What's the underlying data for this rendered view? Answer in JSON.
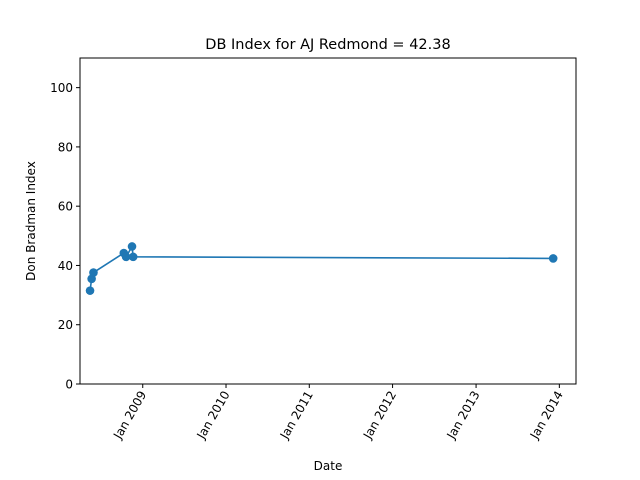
{
  "chart_data": {
    "type": "line",
    "title": "DB Index for AJ Redmond = 42.38",
    "xlabel": "Date",
    "ylabel": "Don Bradman Index",
    "xlim": [
      "2008-04-01",
      "2014-03-15"
    ],
    "ylim": [
      0,
      110
    ],
    "grid": false,
    "x_ticks": [
      {
        "date": "2009-01-01",
        "label": "Jan 2009"
      },
      {
        "date": "2010-01-01",
        "label": "Jan 2010"
      },
      {
        "date": "2011-01-01",
        "label": "Jan 2011"
      },
      {
        "date": "2012-01-01",
        "label": "Jan 2012"
      },
      {
        "date": "2013-01-01",
        "label": "Jan 2013"
      },
      {
        "date": "2014-01-01",
        "label": "Jan 2014"
      }
    ],
    "y_ticks": [
      0,
      20,
      40,
      60,
      80,
      100
    ],
    "series": [
      {
        "color": "#1f77b4",
        "points": [
          {
            "x": "2008-05-15",
            "y": 31.5
          },
          {
            "x": "2008-05-22",
            "y": 35.5
          },
          {
            "x": "2008-05-30",
            "y": 37.6
          },
          {
            "x": "2008-10-10",
            "y": 44.2
          },
          {
            "x": "2008-10-20",
            "y": 42.9
          },
          {
            "x": "2008-11-15",
            "y": 46.4
          },
          {
            "x": "2008-11-20",
            "y": 42.9
          },
          {
            "x": "2013-12-05",
            "y": 42.38
          }
        ]
      }
    ]
  }
}
